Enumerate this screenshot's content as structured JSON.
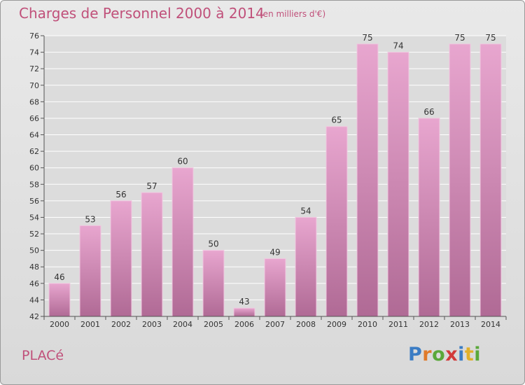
{
  "header": {
    "title": "Charges de Personnel 2000 à 2014",
    "subtitle": "(en milliers d'€)"
  },
  "footer": {
    "commune": "PLACé",
    "logo": "Proxiti",
    "logo_letters": [
      {
        "ch": "P",
        "color": "#3a7cc4"
      },
      {
        "ch": "r",
        "color": "#e07a2a"
      },
      {
        "ch": "o",
        "color": "#5aa83a"
      },
      {
        "ch": "x",
        "color": "#d23a3a"
      },
      {
        "ch": "i",
        "color": "#3a7cc4"
      },
      {
        "ch": "t",
        "color": "#e0b02a"
      },
      {
        "ch": "i",
        "color": "#5aa83a"
      }
    ]
  },
  "colors": {
    "bar_top": "#e8a6cf",
    "bar_bottom": "#b06a95",
    "title": "#c0507a",
    "grid": "#ffffff",
    "axis_text": "#333333"
  },
  "chart_data": {
    "type": "bar",
    "categories": [
      "2000",
      "2001",
      "2002",
      "2003",
      "2004",
      "2005",
      "2006",
      "2007",
      "2008",
      "2009",
      "2010",
      "2011",
      "2012",
      "2013",
      "2014"
    ],
    "values": [
      46,
      53,
      56,
      57,
      60,
      50,
      43,
      49,
      54,
      65,
      75,
      74,
      66,
      75,
      75
    ],
    "data_labels": [
      "46",
      "53",
      "56",
      "57",
      "60",
      "50",
      "43",
      "49",
      "54",
      "65",
      "75",
      "74",
      "66",
      "75",
      "75"
    ],
    "ylim": [
      42,
      76
    ],
    "yticks": [
      42,
      44,
      46,
      48,
      50,
      52,
      54,
      56,
      58,
      60,
      62,
      64,
      66,
      68,
      70,
      72,
      74,
      76
    ],
    "grid": true
  }
}
